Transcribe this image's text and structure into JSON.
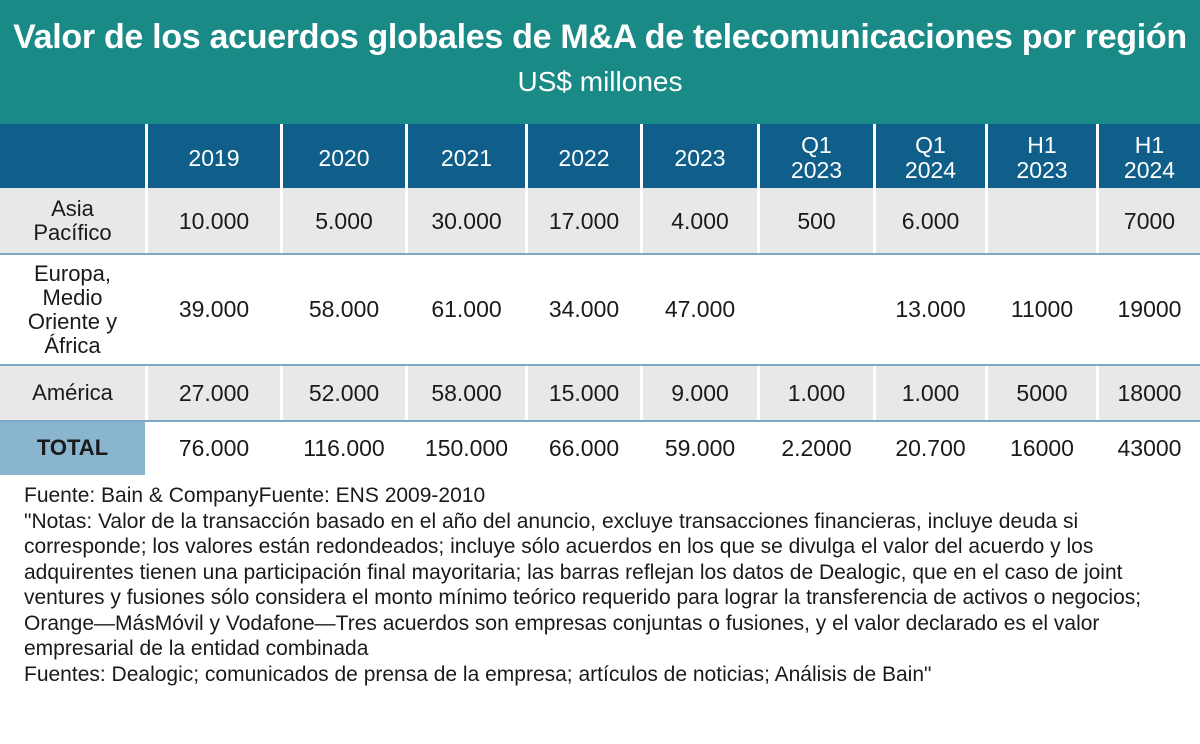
{
  "header": {
    "title": "Valor de los acuerdos globales de M&A de telecomunicaciones por región",
    "subtitle": "US$ millones"
  },
  "chart_data": {
    "type": "table",
    "title": "Valor de los acuerdos globales de M&A de telecomunicaciones por región",
    "subtitle": "US$ millones",
    "columns": [
      "2019",
      "2020",
      "2021",
      "2022",
      "2023",
      "Q1 2023",
      "Q1 2024",
      "H1 2023",
      "H1 2024"
    ],
    "rows": [
      {
        "label": "Asia Pacífico",
        "values": [
          "10.000",
          "5.000",
          "30.000",
          "17.000",
          "4.000",
          "500",
          "6.000",
          "",
          "7000"
        ]
      },
      {
        "label": "Europa, Medio Oriente y África",
        "values": [
          "39.000",
          "58.000",
          "61.000",
          "34.000",
          "47.000",
          "",
          "13.000",
          "11000",
          "19000"
        ]
      },
      {
        "label": "América",
        "values": [
          "27.000",
          "52.000",
          "58.000",
          "15.000",
          "9.000",
          "1.000",
          "1.000",
          "5000",
          "18000"
        ]
      },
      {
        "label": "TOTAL",
        "values": [
          "76.000",
          "116.000",
          "150.000",
          "66.000",
          "59.000",
          "2.2000",
          "20.700",
          "16000",
          "43000"
        ]
      }
    ]
  },
  "table": {
    "col_headers": [
      {
        "line1": "",
        "line2": "2019"
      },
      {
        "line1": "",
        "line2": "2020"
      },
      {
        "line1": "",
        "line2": "2021"
      },
      {
        "line1": "",
        "line2": "2022"
      },
      {
        "line1": "",
        "line2": "2023"
      },
      {
        "line1": "Q1",
        "line2": "2023"
      },
      {
        "line1": "Q1",
        "line2": "2024"
      },
      {
        "line1": "H1",
        "line2": "2023"
      },
      {
        "line1": "H1",
        "line2": "2024"
      }
    ],
    "row_labels": [
      [
        "Asia",
        "Pacífico"
      ],
      [
        "Europa,",
        "Medio",
        "Oriente y",
        "África"
      ],
      [
        "América"
      ],
      [
        "TOTAL"
      ]
    ]
  },
  "notes": {
    "source": "Fuente: Bain & CompanyFuente: ENS 2009-2010",
    "body": "\"Notas: Valor de la transacción basado en el año del anuncio, excluye transacciones financieras, incluye deuda si corresponde; los valores están redondeados; incluye sólo acuerdos en los que se divulga el valor del acuerdo y los adquirentes tienen una participación final mayoritaria; las barras reflejan los datos de Dealogic, que en el caso de joint ventures y fusiones sólo considera el monto mínimo teórico requerido para lograr la transferencia de activos o negocios; Orange—MásMóvil y Vodafone—Tres acuerdos son empresas conjuntas o fusiones, y el valor declarado es el valor empresarial de la entidad combinada",
    "sources": "Fuentes: Dealogic; comunicados de prensa de la empresa; artículos de noticias; Análisis de Bain\""
  }
}
